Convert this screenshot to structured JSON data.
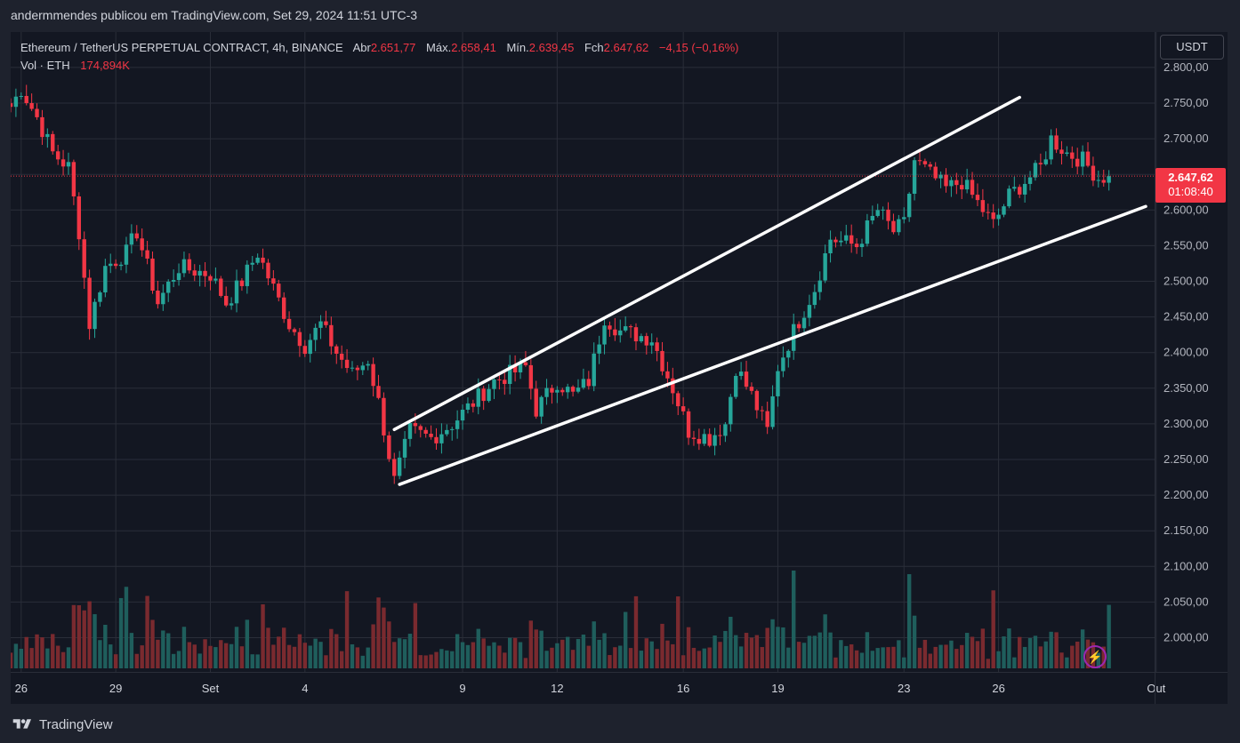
{
  "caption": "andermmendes publicou em TradingView.com, Set 29, 2024 11:51 UTC-3",
  "legend": {
    "symbol": "Ethereum / TetherUS PERPETUAL CONTRACT, 4h, BINANCE",
    "open_label": "Abr",
    "open": "2.651,77",
    "high_label": "Máx.",
    "high": "2.658,41",
    "low_label": "Mín.",
    "low": "2.639,45",
    "close_label": "Fch",
    "close": "2.647,62",
    "change": "−4,15 (−0,16%)",
    "volume_label": "Vol · ETH",
    "volume": "174,894K"
  },
  "currency_button": "USDT",
  "last_price": {
    "price": "2.647,62",
    "countdown": "01:08:40"
  },
  "brand": "TradingView",
  "colors": {
    "up": "#26a69a",
    "down": "#f23645",
    "vol_up": "#1f5e5c",
    "vol_down": "#7a2a2f",
    "grid": "#2a2e39",
    "trendline": "#ffffff"
  },
  "icons": {
    "logo": "tradingview-logo-icon",
    "alert": "flash-icon"
  },
  "chart_data": {
    "type": "candlestick",
    "interval": "4h",
    "y_axis": {
      "min": 1955,
      "max": 2810,
      "ticks": [
        2000,
        2050,
        2100,
        2150,
        2200,
        2250,
        2300,
        2350,
        2400,
        2450,
        2500,
        2550,
        2600,
        2650,
        2700,
        2750,
        2800
      ],
      "tick_labels": [
        "2.000,00",
        "2.050,00",
        "2.100,00",
        "2.150,00",
        "2.200,00",
        "2.250,00",
        "2.300,00",
        "2.350,00",
        "2.400,00",
        "2.450,00",
        "2.500,00",
        "2.550,00",
        "2.600,00",
        "2.650,00",
        "2.700,00",
        "2.750,00",
        "2.800,00"
      ],
      "position": "right"
    },
    "x_axis": {
      "start": "2024-08-25T16:00",
      "end": "2024-09-30T16:00",
      "ticks": [
        "2024-08-26",
        "2024-08-29",
        "2024-09-01",
        "2024-09-04",
        "2024-09-09",
        "2024-09-12",
        "2024-09-16",
        "2024-09-19",
        "2024-09-23",
        "2024-09-26",
        "2024-10-01"
      ],
      "tick_labels": [
        "26",
        "29",
        "Set",
        "4",
        "9",
        "12",
        "16",
        "19",
        "23",
        "26",
        "Out"
      ]
    },
    "grid": true,
    "last_price": 2647.62,
    "anchors": [
      [
        "2024-08-25T16:00",
        2745
      ],
      [
        "2024-08-26T00:00",
        2770
      ],
      [
        "2024-08-26T12:00",
        2730
      ],
      [
        "2024-08-27T00:00",
        2680
      ],
      [
        "2024-08-27T12:00",
        2660
      ],
      [
        "2024-08-27T20:00",
        2570
      ],
      [
        "2024-08-28T04:00",
        2440
      ],
      [
        "2024-08-28T16:00",
        2520
      ],
      [
        "2024-08-29T08:00",
        2540
      ],
      [
        "2024-08-29T16:00",
        2570
      ],
      [
        "2024-08-30T00:00",
        2520
      ],
      [
        "2024-08-30T08:00",
        2470
      ],
      [
        "2024-08-31T00:00",
        2520
      ],
      [
        "2024-09-01T00:00",
        2510
      ],
      [
        "2024-09-01T12:00",
        2470
      ],
      [
        "2024-09-02T00:00",
        2500
      ],
      [
        "2024-09-02T12:00",
        2540
      ],
      [
        "2024-09-03T00:00",
        2490
      ],
      [
        "2024-09-03T12:00",
        2440
      ],
      [
        "2024-09-04T00:00",
        2410
      ],
      [
        "2024-09-04T12:00",
        2440
      ],
      [
        "2024-09-05T00:00",
        2400
      ],
      [
        "2024-09-05T12:00",
        2370
      ],
      [
        "2024-09-06T00:00",
        2390
      ],
      [
        "2024-09-06T08:00",
        2330
      ],
      [
        "2024-09-06T20:00",
        2220
      ],
      [
        "2024-09-07T08:00",
        2290
      ],
      [
        "2024-09-08T00:00",
        2280
      ],
      [
        "2024-09-08T16:00",
        2300
      ],
      [
        "2024-09-09T08:00",
        2330
      ],
      [
        "2024-09-10T00:00",
        2360
      ],
      [
        "2024-09-11T00:00",
        2380
      ],
      [
        "2024-09-11T08:00",
        2320
      ],
      [
        "2024-09-12T00:00",
        2360
      ],
      [
        "2024-09-12T12:00",
        2340
      ],
      [
        "2024-09-13T00:00",
        2360
      ],
      [
        "2024-09-13T12:00",
        2450
      ],
      [
        "2024-09-14T00:00",
        2430
      ],
      [
        "2024-09-15T00:00",
        2420
      ],
      [
        "2024-09-15T16:00",
        2350
      ],
      [
        "2024-09-16T04:00",
        2290
      ],
      [
        "2024-09-16T20:00",
        2280
      ],
      [
        "2024-09-17T08:00",
        2300
      ],
      [
        "2024-09-17T16:00",
        2380
      ],
      [
        "2024-09-18T04:00",
        2340
      ],
      [
        "2024-09-18T16:00",
        2290
      ],
      [
        "2024-09-19T00:00",
        2380
      ],
      [
        "2024-09-19T12:00",
        2430
      ],
      [
        "2024-09-20T04:00",
        2490
      ],
      [
        "2024-09-20T16:00",
        2560
      ],
      [
        "2024-09-21T12:00",
        2550
      ],
      [
        "2024-09-22T04:00",
        2600
      ],
      [
        "2024-09-22T16:00",
        2570
      ],
      [
        "2024-09-23T00:00",
        2580
      ],
      [
        "2024-09-23T08:00",
        2670
      ],
      [
        "2024-09-23T20:00",
        2650
      ],
      [
        "2024-09-24T08:00",
        2630
      ],
      [
        "2024-09-24T20:00",
        2640
      ],
      [
        "2024-09-25T08:00",
        2610
      ],
      [
        "2024-09-25T20:00",
        2580
      ],
      [
        "2024-09-26T08:00",
        2620
      ],
      [
        "2024-09-26T20:00",
        2640
      ],
      [
        "2024-09-27T08:00",
        2660
      ],
      [
        "2024-09-27T16:00",
        2700
      ],
      [
        "2024-09-28T04:00",
        2680
      ],
      [
        "2024-09-28T16:00",
        2670
      ],
      [
        "2024-09-29T04:00",
        2645
      ],
      [
        "2024-09-29T12:00",
        2648
      ]
    ],
    "trendlines": [
      {
        "name": "upper-line",
        "from": [
          "2024-09-06T20:00",
          2292
        ],
        "to": [
          "2024-09-26T16:00",
          2758
        ]
      },
      {
        "name": "lower-line",
        "from": [
          "2024-09-07T00:00",
          2215
        ],
        "to": [
          "2024-09-30T16:00",
          2605
        ]
      }
    ]
  }
}
